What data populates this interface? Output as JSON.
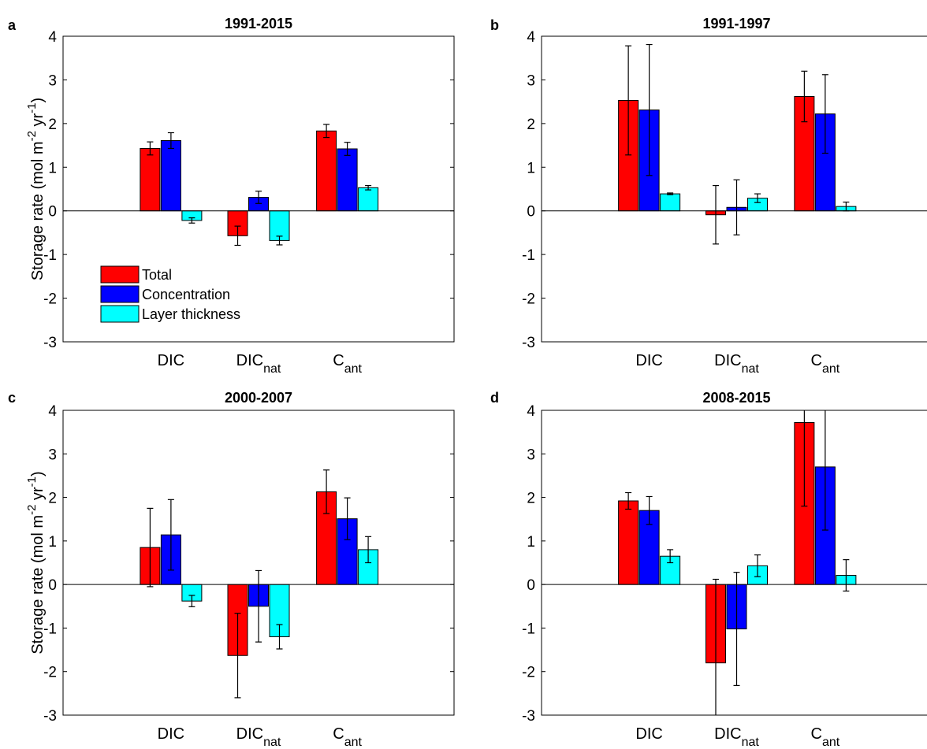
{
  "figure": {
    "colors": {
      "total": "#ff0000",
      "concentration": "#0000ff",
      "layer_thickness": "#00ffff",
      "axis": "#000000"
    },
    "legend": {
      "position": "lower-left of panel a",
      "entries": [
        "Total",
        "Concentration",
        "Layer thickness"
      ]
    },
    "ylabel": {
      "main": "Storage rate (mol m",
      "sup1": "-2",
      "mid": " yr",
      "sup2": "-1",
      "end": ")"
    }
  },
  "chart_data": [
    {
      "panel": "a",
      "type": "bar",
      "title": "1991-2015",
      "categories": [
        {
          "base": "DIC",
          "sub": ""
        },
        {
          "base": "DIC",
          "sub": "nat"
        },
        {
          "base": "C",
          "sub": "ant"
        }
      ],
      "yticks": [
        "4",
        "3",
        "2",
        "1",
        "0",
        "-1",
        "-2",
        "-3"
      ],
      "ylim": [
        -3,
        4
      ],
      "grid": false,
      "series": [
        {
          "name": "Total",
          "values": [
            1.43,
            -0.57,
            1.83
          ],
          "err_low": [
            0.15,
            0.22,
            0.15
          ],
          "err_high": [
            0.15,
            0.22,
            0.15
          ]
        },
        {
          "name": "Concentration",
          "values": [
            1.61,
            0.31,
            1.42
          ],
          "err_low": [
            0.18,
            0.14,
            0.15
          ],
          "err_high": [
            0.18,
            0.14,
            0.15
          ]
        },
        {
          "name": "Layer thickness",
          "values": [
            -0.22,
            -0.68,
            0.53
          ],
          "err_low": [
            0.06,
            0.1,
            0.05
          ],
          "err_high": [
            0.06,
            0.1,
            0.05
          ]
        }
      ]
    },
    {
      "panel": "b",
      "type": "bar",
      "title": "1991-1997",
      "categories": [
        {
          "base": "DIC",
          "sub": ""
        },
        {
          "base": "DIC",
          "sub": "nat"
        },
        {
          "base": "C",
          "sub": "ant"
        }
      ],
      "yticks": [
        "4",
        "3",
        "2",
        "1",
        "0",
        "-1",
        "-2",
        "-3"
      ],
      "ylim": [
        -3,
        4
      ],
      "grid": false,
      "series": [
        {
          "name": "Total",
          "values": [
            2.53,
            -0.09,
            2.62
          ],
          "err_low": [
            1.25,
            0.67,
            0.58
          ],
          "err_high": [
            1.25,
            0.67,
            0.58
          ]
        },
        {
          "name": "Concentration",
          "values": [
            2.31,
            0.08,
            2.22
          ],
          "err_low": [
            1.5,
            0.63,
            0.9
          ],
          "err_high": [
            1.5,
            0.63,
            0.9
          ]
        },
        {
          "name": "Layer thickness",
          "values": [
            0.39,
            0.29,
            0.1
          ],
          "err_low": [
            0.02,
            0.1,
            0.1
          ],
          "err_high": [
            0.02,
            0.1,
            0.1
          ]
        }
      ]
    },
    {
      "panel": "c",
      "type": "bar",
      "title": "2000-2007",
      "categories": [
        {
          "base": "DIC",
          "sub": ""
        },
        {
          "base": "DIC",
          "sub": "nat"
        },
        {
          "base": "C",
          "sub": "ant"
        }
      ],
      "yticks": [
        "4",
        "3",
        "2",
        "1",
        "0",
        "-1",
        "-2",
        "-3"
      ],
      "ylim": [
        -3,
        4
      ],
      "grid": false,
      "series": [
        {
          "name": "Total",
          "values": [
            0.85,
            -1.63,
            2.13
          ],
          "err_low": [
            0.9,
            0.97,
            0.5
          ],
          "err_high": [
            0.9,
            0.97,
            0.5
          ]
        },
        {
          "name": "Concentration",
          "values": [
            1.14,
            -0.5,
            1.51
          ],
          "err_low": [
            0.81,
            0.82,
            0.48
          ],
          "err_high": [
            0.81,
            0.82,
            0.48
          ]
        },
        {
          "name": "Layer thickness",
          "values": [
            -0.38,
            -1.2,
            0.8
          ],
          "err_low": [
            0.13,
            0.28,
            0.3
          ],
          "err_high": [
            0.13,
            0.28,
            0.3
          ]
        }
      ]
    },
    {
      "panel": "d",
      "type": "bar",
      "title": "2008-2015",
      "categories": [
        {
          "base": "DIC",
          "sub": ""
        },
        {
          "base": "DIC",
          "sub": "nat"
        },
        {
          "base": "C",
          "sub": "ant"
        }
      ],
      "yticks": [
        "4",
        "3",
        "2",
        "1",
        "0",
        "-1",
        "-2",
        "-3"
      ],
      "ylim": [
        -3,
        4
      ],
      "grid": false,
      "series": [
        {
          "name": "Total",
          "values": [
            1.92,
            -1.8,
            3.72
          ],
          "err_low": [
            0.19,
            1.92,
            1.92
          ],
          "err_high": [
            0.19,
            1.92,
            1.92
          ]
        },
        {
          "name": "Concentration",
          "values": [
            1.7,
            -1.02,
            2.7
          ],
          "err_low": [
            0.32,
            1.3,
            1.45
          ],
          "err_high": [
            0.32,
            1.3,
            1.45
          ]
        },
        {
          "name": "Layer thickness",
          "values": [
            0.65,
            0.43,
            0.21
          ],
          "err_low": [
            0.15,
            0.25,
            0.36
          ],
          "err_high": [
            0.15,
            0.25,
            0.36
          ]
        }
      ]
    }
  ]
}
